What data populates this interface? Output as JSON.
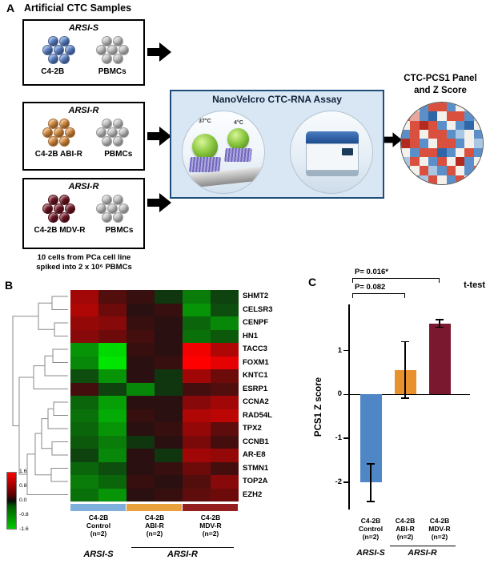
{
  "figure": {
    "panel_a": "A",
    "panel_b": "B",
    "panel_c": "C"
  },
  "panelA": {
    "title": "Artificial CTC Samples",
    "pbmc_color": "#c7c7c7",
    "samples": [
      {
        "group": "ARSI-S",
        "cell_label": "C4-2B",
        "pbmc_label": "PBMCs",
        "cell_color": "#5b82c8"
      },
      {
        "group": "ARSI-R",
        "cell_label": "C4-2B ABI-R",
        "pbmc_label": "PBMCs",
        "cell_color": "#da8c3e"
      },
      {
        "group": "ARSI-R",
        "cell_label": "C4-2B MDV-R",
        "pbmc_label": "PBMCs",
        "cell_color": "#6e1423"
      }
    ],
    "note_line1": "10 cells from PCa cell line",
    "note_line2": "spiked into 2 x 10⁶ PBMCs",
    "assay": {
      "title": "NanoVelcro CTC-RNA Assay",
      "temp_37": "37°C",
      "temp_4": "4°C"
    },
    "output_title_line1": "CTC-PCS1 Panel",
    "output_title_line2": "and Z Score",
    "mosaic": {
      "palette": {
        "r": "#d9513e",
        "R": "#b22a20",
        "b": "#5b8fc9",
        "B": "#2f66a8",
        "w": "#f4f1ec",
        "p": "#e8a89e",
        "c": "#a9c6e2"
      },
      "rows": [
        "cwbrrbwcb",
        "rpbBwrrbc",
        "wrRrbwbBw",
        "brwrrbcwb",
        "Rrbwrrbwc",
        "wbrrBbwrb",
        "crwbrwRbw",
        "bwrcbrwbr",
        "wbcrwbrwb"
      ]
    }
  },
  "chart_data": [
    {
      "type": "heatmap",
      "panel": "B",
      "rows": [
        "SHMT2",
        "CELSR3",
        "CENPF",
        "HN1",
        "TACC3",
        "FOXM1",
        "KNTC1",
        "ESRP1",
        "CCNA2",
        "RAD54L",
        "TPX2",
        "CCNB1",
        "AR-E8",
        "STMN1",
        "TOP2A",
        "EZH2"
      ],
      "column_groups": [
        {
          "label": "C4-2B Control (n=2)",
          "columns": 2,
          "color": "#7fb0dd"
        },
        {
          "label": "C4-2B ABI-R (n=2)",
          "columns": 2,
          "color": "#e9a23b"
        },
        {
          "label": "C4-2B MDV-R (n=2)",
          "columns": 2,
          "color": "#931f1f"
        }
      ],
      "values": [
        [
          0.9,
          0.3,
          0.1,
          -0.1,
          -0.7,
          -0.2
        ],
        [
          1.0,
          0.5,
          0.0,
          0.1,
          -0.9,
          -0.3
        ],
        [
          0.8,
          0.7,
          0.1,
          0.0,
          -0.5,
          -0.8
        ],
        [
          0.7,
          0.5,
          0.2,
          0.0,
          -0.6,
          -0.4
        ],
        [
          -0.9,
          -1.5,
          0.1,
          0.0,
          1.5,
          1.0
        ],
        [
          -0.8,
          -1.6,
          0.0,
          0.1,
          1.6,
          1.4
        ],
        [
          -0.3,
          -0.9,
          0.0,
          -0.1,
          0.9,
          0.5
        ],
        [
          0.2,
          -0.2,
          -0.8,
          -0.1,
          0.2,
          0.3
        ],
        [
          -0.5,
          -1.0,
          0.0,
          0.0,
          0.7,
          0.9
        ],
        [
          -0.6,
          -1.1,
          0.1,
          0.0,
          1.0,
          1.1
        ],
        [
          -0.5,
          -0.9,
          0.0,
          0.1,
          0.8,
          0.4
        ],
        [
          -0.4,
          -0.7,
          -0.1,
          0.0,
          0.6,
          0.2
        ],
        [
          -0.2,
          -0.8,
          0.0,
          -0.1,
          0.9,
          0.8
        ],
        [
          -0.5,
          -0.3,
          0.0,
          0.1,
          0.5,
          0.2
        ],
        [
          -0.7,
          -0.5,
          0.1,
          0.0,
          0.3,
          0.7
        ],
        [
          -0.6,
          -0.9,
          0.0,
          0.1,
          0.4,
          0.5
        ]
      ],
      "scale": {
        "min": -1.6,
        "max": 1.6,
        "ticks": [
          "1.6",
          "0.8",
          "0.0",
          "-0.8",
          "-1.6"
        ]
      },
      "x_axis_groups": [
        "ARSI-S",
        "ARSI-R"
      ]
    },
    {
      "type": "bar",
      "panel": "C",
      "ylabel": "PCS1 Z score",
      "categories": [
        "C4-2B Control (n=2)",
        "C4-2B ABI-R (n=2)",
        "C4-2B MDV-R (n=2)"
      ],
      "values": [
        -2.0,
        0.55,
        1.62
      ],
      "errors": [
        [
          -2.44,
          -1.58
        ],
        [
          -0.08,
          1.2
        ],
        [
          1.53,
          1.7
        ]
      ],
      "colors": [
        "#4f86c6",
        "#e8922e",
        "#7a1830"
      ],
      "yticks": [
        1,
        0,
        -1,
        -2
      ],
      "ylim": [
        -2.62,
        2.05
      ],
      "annotations": [
        {
          "label": "P= 0.016*",
          "from": 0,
          "to": 2
        },
        {
          "label": "P= 0.082",
          "from": 0,
          "to": 1
        }
      ],
      "stat_note": "t-test",
      "x_axis_groups": [
        "ARSI-S",
        "ARSI-R"
      ]
    }
  ]
}
